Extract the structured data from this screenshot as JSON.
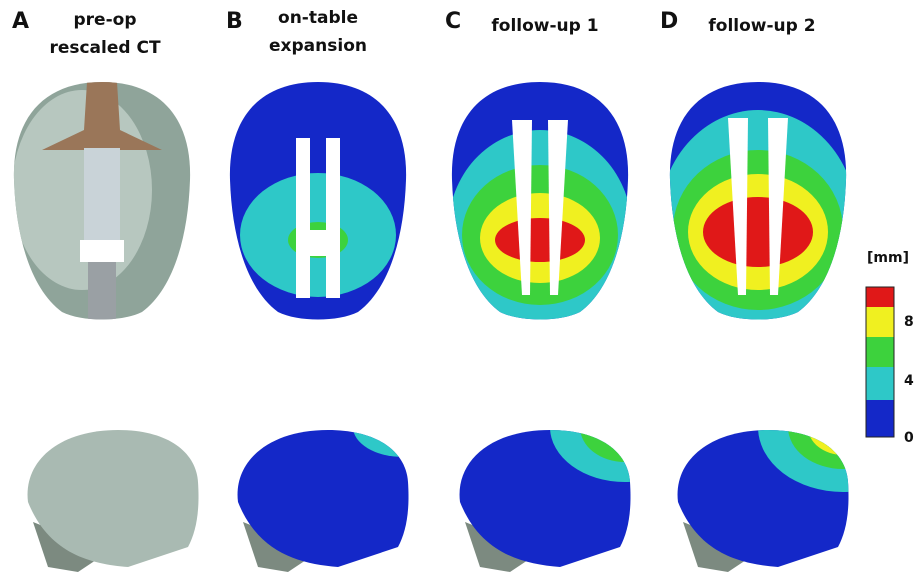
{
  "panels": [
    {
      "letter": "A",
      "title_lines": [
        "pre-op",
        "rescaled CT"
      ]
    },
    {
      "letter": "B",
      "title_lines": [
        "on-table",
        "expansion"
      ]
    },
    {
      "letter": "C",
      "title_lines": [
        "follow-up 1"
      ]
    },
    {
      "letter": "D",
      "title_lines": [
        "follow-up 2"
      ]
    }
  ],
  "colorbar": {
    "unit": "[mm]",
    "ticks": [
      "8",
      "4",
      "0"
    ]
  }
}
